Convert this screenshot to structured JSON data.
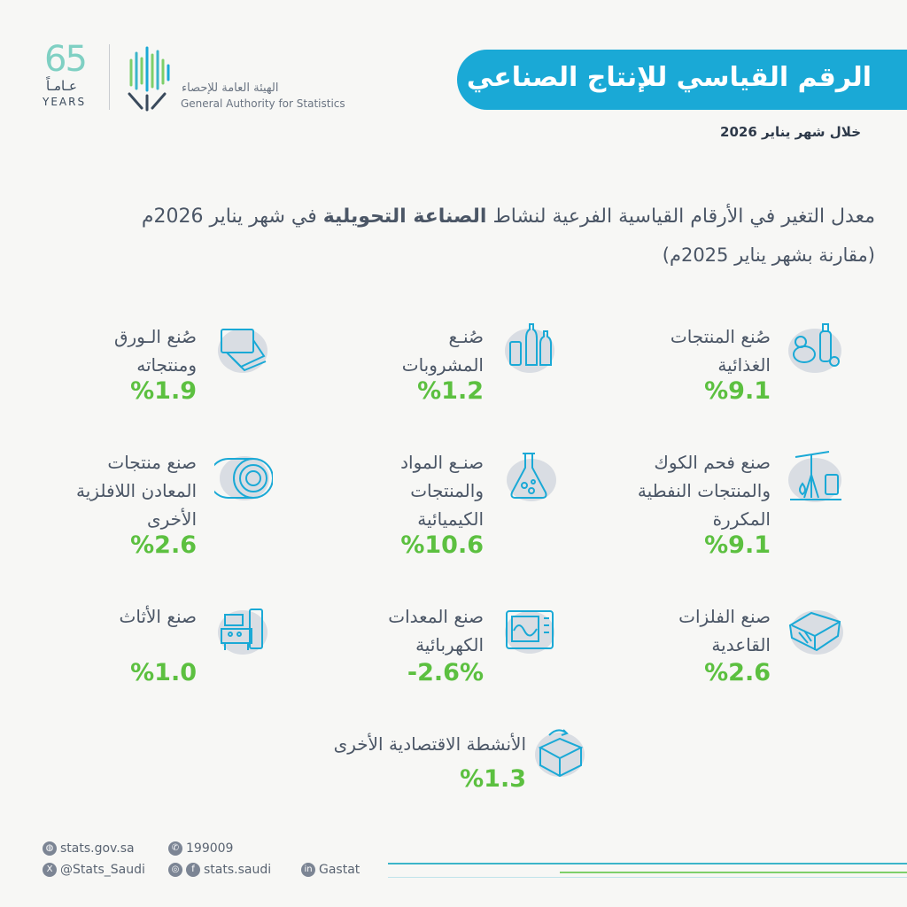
{
  "header": {
    "title": "الرقم القياسي للإنتاج الصناعي",
    "period": "خلال شهر يناير 2026"
  },
  "logo": {
    "anniversary_number": "65",
    "anniversary_ar": "عـامـاً",
    "anniversary_en": "YEARS",
    "org_ar": "الهيئة العامة للإحصاء",
    "org_en": "General Authority for Statistics"
  },
  "subtitle": {
    "line1_prefix": "معدل التغير في الأرقام القياسية الفرعية لنشاط ",
    "line1_bold": "الصناعة التحويلية",
    "line1_suffix": " في شهر يناير 2026م",
    "line2": "(مقارنة بشهر يناير 2025م)"
  },
  "cards": [
    {
      "id": "food",
      "label": "صُنع المنتجات\nالغذائية",
      "value": "%9.1",
      "icon": "food-products-icon"
    },
    {
      "id": "beverages",
      "label": "صُنـع\nالمشروبات",
      "value": "%1.2",
      "icon": "beverage-bottles-icon"
    },
    {
      "id": "paper",
      "label": "صُنع الـورق\nومنتجاته",
      "value": "%1.9",
      "icon": "paper-sheets-icon"
    },
    {
      "id": "coke",
      "label": "صنع فحم الكوك\nوالمنتجات النفطية\nالمكررة",
      "value": "%9.1",
      "icon": "oil-pump-icon"
    },
    {
      "id": "chemicals",
      "label": "صنـع المواد\nوالمنتجات\nالكيميائية",
      "value": "%10.6",
      "icon": "chemistry-flask-icon"
    },
    {
      "id": "minerals",
      "label": "صنع منتجات\nالمعادن اللافلزية\nالأخرى",
      "value": "%2.6",
      "icon": "mineral-roll-icon"
    },
    {
      "id": "metals",
      "label": "صنع الفلزات\nالقاعدية",
      "value": "%2.6",
      "icon": "metal-ingot-icon"
    },
    {
      "id": "electrical",
      "label": "صنع المعدات\nالكهربائية",
      "value": "-2.6%",
      "icon": "electrical-equipment-icon"
    },
    {
      "id": "furniture",
      "label": "صنع الأثاث",
      "value": "%1.0",
      "icon": "furniture-sofa-icon"
    },
    {
      "id": "other",
      "label": "الأنشطة الاقتصادية الأخرى",
      "value": "%1.3",
      "icon": "open-box-icon"
    }
  ],
  "footer": {
    "website": "stats.gov.sa",
    "phone": "199009",
    "twitter": "@Stats_Saudi",
    "social": "stats.saudi",
    "linkedin": "Gastat"
  },
  "colors": {
    "accent": "#1aa9d6",
    "value_green": "#5cc040",
    "text": "#4b5666",
    "icon_stroke": "#1aa9d6",
    "icon_blob": "#d9dde3"
  }
}
